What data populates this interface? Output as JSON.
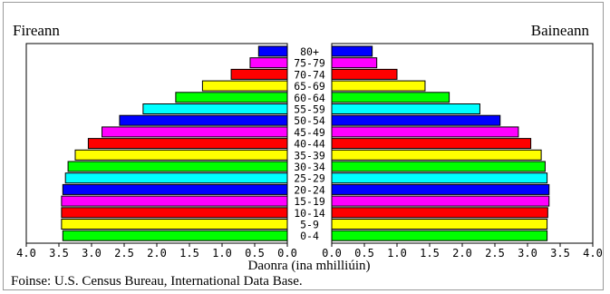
{
  "chart_data": {
    "type": "bar",
    "subtype": "population-pyramid",
    "left_label": "Fireann",
    "right_label": "Baineann",
    "xlabel": "Daonra (ina mhilliúin)",
    "x_ticks": [
      "4.0",
      "3.5",
      "3.0",
      "2.5",
      "2.0",
      "1.5",
      "1.0",
      "0.5",
      "0.0"
    ],
    "x_ticks_right": [
      "0.0",
      "0.5",
      "1.0",
      "1.5",
      "2.0",
      "2.5",
      "3.0",
      "3.5",
      "4.0"
    ],
    "xlim": [
      0,
      4.0
    ],
    "categories": [
      "80+",
      "75-79",
      "70-74",
      "65-69",
      "60-64",
      "55-59",
      "50-54",
      "45-49",
      "40-44",
      "35-39",
      "30-34",
      "25-29",
      "20-24",
      "15-19",
      "10-14",
      "5-9",
      "0-4"
    ],
    "series": [
      {
        "name": "Fireann",
        "values": [
          0.44,
          0.57,
          0.86,
          1.3,
          1.71,
          2.21,
          2.57,
          2.84,
          3.05,
          3.25,
          3.36,
          3.4,
          3.44,
          3.46,
          3.46,
          3.46,
          3.44
        ]
      },
      {
        "name": "Baineann",
        "values": [
          0.62,
          0.69,
          1.0,
          1.43,
          1.8,
          2.27,
          2.58,
          2.86,
          3.05,
          3.21,
          3.27,
          3.3,
          3.33,
          3.33,
          3.31,
          3.3,
          3.3
        ]
      }
    ],
    "colors": [
      "#0000ff",
      "#ff00ff",
      "#ff0000",
      "#ffff00",
      "#00ff00",
      "#00ffff",
      "#0000ff",
      "#ff00ff",
      "#ff0000",
      "#ffff00",
      "#00ff00",
      "#00ffff",
      "#0000ff",
      "#ff00ff",
      "#ff0000",
      "#ffff00",
      "#00ff00"
    ],
    "source": "Foinse: U.S. Census Bureau, International Data Base."
  }
}
